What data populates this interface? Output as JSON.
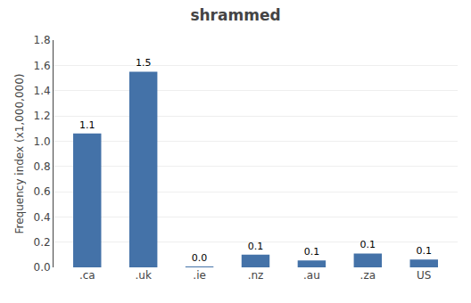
{
  "chart_data": {
    "type": "bar",
    "title": "shrammed",
    "categories": [
      ".ca",
      ".uk",
      ".ie",
      ".nz",
      ".au",
      ".za",
      "US"
    ],
    "values": [
      1.06,
      1.55,
      0.005,
      0.1,
      0.055,
      0.11,
      0.062
    ],
    "value_labels": [
      "1.1",
      "1.5",
      "0.0",
      "0.1",
      "0.1",
      "0.1",
      "0.1"
    ],
    "data_labels": true,
    "color": "#4472a8",
    "ylabel": "Frequency index (x1,000,000)",
    "ylim": [
      0,
      1.8
    ],
    "yticks": [
      {
        "value": 0,
        "label": "0.0"
      },
      0.2,
      0.4,
      0.6,
      0.8,
      {
        "value": 1,
        "label": "1.0"
      },
      1.2,
      1.4,
      1.6,
      1.8
    ],
    "grid": true
  }
}
